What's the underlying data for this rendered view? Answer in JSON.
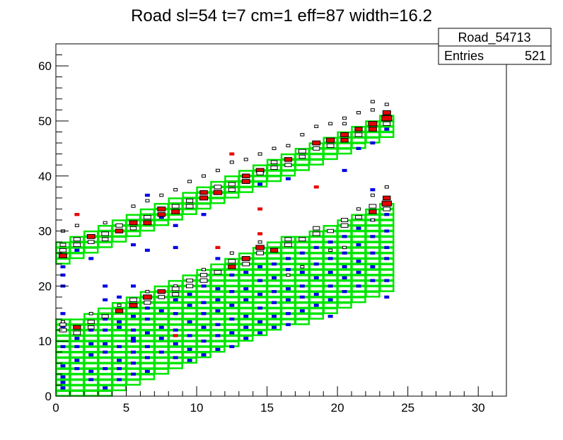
{
  "chart_data": {
    "type": "heatmap",
    "title": "Road sl=54 t=7 cm=1 eff=87 width=16.2",
    "xlabel": "",
    "ylabel": "",
    "xlim": [
      0,
      32
    ],
    "ylim": [
      0,
      64
    ],
    "x_ticks": [
      0,
      5,
      10,
      15,
      20,
      25,
      30
    ],
    "y_ticks": [
      0,
      10,
      20,
      30,
      40,
      50,
      60
    ],
    "grid": false,
    "stats_box": {
      "name": "Road_54713",
      "entries_label": "Entries",
      "entries_value": "521"
    },
    "colors": {
      "road_box": "#00e600",
      "hit_blue": "#0000e6",
      "hit_red": "#e60000",
      "hit_outline": "#000000"
    },
    "road_upper": {
      "x_start": 0,
      "x_end": 24,
      "y_low_at_0": 23.5,
      "slope": 1.01,
      "height": 4
    },
    "road_lower": {
      "x_start": 0,
      "x_end": 24,
      "y_low_at_0": -2.5,
      "slope": 0.94,
      "height": 16
    },
    "boxes_upper": [
      [
        0,
        26.0,
        0.35
      ],
      [
        0,
        25.0,
        0.5
      ],
      [
        0,
        27.0,
        0.25
      ],
      [
        1,
        27.0,
        0.4
      ],
      [
        1,
        28.0,
        0.35
      ],
      [
        2,
        28.5,
        0.5
      ],
      [
        2,
        27.5,
        0.3
      ],
      [
        3,
        29.0,
        0.4
      ],
      [
        3,
        28.0,
        0.3
      ],
      [
        4,
        30.5,
        0.35
      ],
      [
        4,
        29.5,
        0.45
      ],
      [
        5,
        31.0,
        0.5
      ],
      [
        5,
        30.0,
        0.3
      ],
      [
        6,
        32.0,
        0.4
      ],
      [
        6,
        31.0,
        0.5
      ],
      [
        7,
        33.5,
        0.5
      ],
      [
        7,
        32.5,
        0.45
      ],
      [
        8,
        34.0,
        0.4
      ],
      [
        8,
        33.0,
        0.5
      ],
      [
        9,
        35.0,
        0.35
      ],
      [
        9,
        34.0,
        0.4
      ],
      [
        10,
        36.5,
        0.45
      ],
      [
        10,
        35.5,
        0.5
      ],
      [
        11,
        37.5,
        0.4
      ],
      [
        11,
        36.5,
        0.55
      ],
      [
        12,
        38.0,
        0.35
      ],
      [
        12,
        37.0,
        0.35
      ],
      [
        13,
        39.5,
        0.45
      ],
      [
        13,
        38.5,
        0.5
      ],
      [
        14,
        40.5,
        0.5
      ],
      [
        14,
        40.0,
        0.35
      ],
      [
        15,
        41.0,
        0.35
      ],
      [
        15,
        42.0,
        0.3
      ],
      [
        16,
        42.5,
        0.45
      ],
      [
        16,
        41.5,
        0.35
      ],
      [
        17,
        44.0,
        0.4
      ],
      [
        17,
        43.0,
        0.3
      ],
      [
        18,
        45.5,
        0.5
      ],
      [
        18,
        44.5,
        0.35
      ],
      [
        19,
        46.0,
        0.55
      ],
      [
        19,
        45.0,
        0.4
      ],
      [
        20,
        47.0,
        0.5
      ],
      [
        20,
        46.0,
        0.45
      ],
      [
        21,
        48.0,
        0.45
      ],
      [
        21,
        47.0,
        0.4
      ],
      [
        22,
        49.0,
        0.6
      ],
      [
        22,
        48.0,
        0.5
      ],
      [
        23,
        50.0,
        0.75
      ],
      [
        23,
        51.0,
        0.5
      ],
      [
        23,
        49.0,
        0.4
      ]
    ],
    "boxes_lower": [
      [
        0,
        11.5,
        0.4
      ],
      [
        0,
        12.5,
        0.3
      ],
      [
        1,
        12.0,
        0.45
      ],
      [
        1,
        11.0,
        0.4
      ],
      [
        2,
        13.0,
        0.35
      ],
      [
        2,
        12.0,
        0.3
      ],
      [
        3,
        14.0,
        0.35
      ],
      [
        4,
        15.0,
        0.45
      ],
      [
        5,
        16.0,
        0.5
      ],
      [
        5,
        17.0,
        0.4
      ],
      [
        6,
        17.5,
        0.55
      ],
      [
        6,
        16.5,
        0.35
      ],
      [
        7,
        18.5,
        0.45
      ],
      [
        7,
        17.5,
        0.3
      ],
      [
        8,
        19.0,
        0.4
      ],
      [
        8,
        18.0,
        0.35
      ],
      [
        9,
        19.5,
        0.35
      ],
      [
        9,
        20.5,
        0.3
      ],
      [
        10,
        20.5,
        0.4
      ],
      [
        10,
        21.5,
        0.35
      ],
      [
        11,
        22.0,
        0.4
      ],
      [
        12,
        23.0,
        0.45
      ],
      [
        12,
        24.0,
        0.4
      ],
      [
        13,
        24.5,
        0.5
      ],
      [
        13,
        23.5,
        0.4
      ],
      [
        14,
        25.5,
        0.4
      ],
      [
        14,
        26.5,
        0.55
      ],
      [
        15,
        26.0,
        0.45
      ],
      [
        16,
        27.0,
        0.4
      ],
      [
        16,
        28.0,
        0.35
      ],
      [
        17,
        28.0,
        0.35
      ],
      [
        18,
        29.0,
        0.4
      ],
      [
        18,
        30.0,
        0.35
      ],
      [
        19,
        29.5,
        0.3
      ],
      [
        20,
        30.5,
        0.4
      ],
      [
        20,
        31.5,
        0.35
      ],
      [
        21,
        32.0,
        0.35
      ],
      [
        22,
        33.0,
        0.45
      ],
      [
        22,
        34.0,
        0.4
      ],
      [
        23,
        34.5,
        0.7
      ],
      [
        23,
        35.5,
        0.45
      ],
      [
        23,
        33.5,
        0.4
      ]
    ],
    "blue_hits": [
      [
        0,
        23.0
      ],
      [
        0,
        21.5
      ],
      [
        0,
        19.5
      ],
      [
        0,
        14.5
      ],
      [
        0,
        12.0
      ],
      [
        0,
        8.5
      ],
      [
        0,
        5.0
      ],
      [
        0,
        3.0
      ],
      [
        0,
        2.0
      ],
      [
        0,
        1.0
      ],
      [
        1,
        26.0
      ],
      [
        1,
        10.0
      ],
      [
        1,
        8.5
      ],
      [
        1,
        6.0
      ],
      [
        1,
        4.5
      ],
      [
        2,
        24.5
      ],
      [
        2,
        11.5
      ],
      [
        2,
        9.0
      ],
      [
        2,
        7.0
      ],
      [
        2,
        4.0
      ],
      [
        2,
        2.5
      ],
      [
        3,
        28.0
      ],
      [
        3,
        19.5
      ],
      [
        3,
        17.0
      ],
      [
        3,
        13.5
      ],
      [
        3,
        11.5
      ],
      [
        3,
        9.0
      ],
      [
        3,
        7.5
      ],
      [
        3,
        4.5
      ],
      [
        3,
        1.0
      ],
      [
        4,
        17.5
      ],
      [
        4,
        13.0
      ],
      [
        4,
        12.0
      ],
      [
        4,
        8.5
      ],
      [
        4,
        6.0
      ],
      [
        4,
        4.5
      ],
      [
        4,
        2.5
      ],
      [
        5,
        27.0
      ],
      [
        5,
        19.5
      ],
      [
        5,
        14.0
      ],
      [
        5,
        11.5
      ],
      [
        5,
        10.0
      ],
      [
        5,
        9.5
      ],
      [
        5,
        7.5
      ],
      [
        5,
        5.5
      ],
      [
        5,
        3.5
      ],
      [
        6,
        36.0
      ],
      [
        6,
        26.0
      ],
      [
        6,
        15.5
      ],
      [
        6,
        13.5
      ],
      [
        6,
        11.0
      ],
      [
        6,
        8.5
      ],
      [
        6,
        6.5
      ],
      [
        6,
        4.0
      ],
      [
        7,
        32.0
      ],
      [
        7,
        15.0
      ],
      [
        7,
        12.0
      ],
      [
        7,
        10.0
      ],
      [
        7,
        7.5
      ],
      [
        8,
        30.5
      ],
      [
        8,
        26.5
      ],
      [
        8,
        17.0
      ],
      [
        8,
        14.5
      ],
      [
        8,
        11.5
      ],
      [
        8,
        9.0
      ],
      [
        8,
        6.5
      ],
      [
        9,
        18.0
      ],
      [
        9,
        16.0
      ],
      [
        9,
        13.0
      ],
      [
        9,
        10.5
      ],
      [
        9,
        8.0
      ],
      [
        9,
        6.0
      ],
      [
        10,
        32.5
      ],
      [
        10,
        19.5
      ],
      [
        10,
        16.5
      ],
      [
        10,
        14.5
      ],
      [
        10,
        12.0
      ],
      [
        10,
        9.5
      ],
      [
        10,
        7.0
      ],
      [
        11,
        24.5
      ],
      [
        11,
        19.0
      ],
      [
        11,
        17.0
      ],
      [
        11,
        15.0
      ],
      [
        11,
        12.5
      ],
      [
        11,
        10.5
      ],
      [
        11,
        8.0
      ],
      [
        12,
        21.5
      ],
      [
        12,
        18.5
      ],
      [
        12,
        16.0
      ],
      [
        12,
        13.5
      ],
      [
        12,
        11.0
      ],
      [
        12,
        8.5
      ],
      [
        13,
        22.0
      ],
      [
        13,
        19.0
      ],
      [
        13,
        17.0
      ],
      [
        13,
        14.0
      ],
      [
        13,
        12.0
      ],
      [
        13,
        10.0
      ],
      [
        14,
        38.0
      ],
      [
        14,
        23.0
      ],
      [
        14,
        20.5
      ],
      [
        14,
        18.0
      ],
      [
        14,
        15.5
      ],
      [
        14,
        13.0
      ],
      [
        14,
        11.0
      ],
      [
        15,
        23.5
      ],
      [
        15,
        21.0
      ],
      [
        15,
        18.5
      ],
      [
        15,
        16.5
      ],
      [
        15,
        14.0
      ],
      [
        15,
        12.0
      ],
      [
        16,
        39.0
      ],
      [
        16,
        24.5
      ],
      [
        16,
        22.5
      ],
      [
        16,
        19.0
      ],
      [
        16,
        17.0
      ],
      [
        16,
        14.5
      ],
      [
        16,
        12.5
      ],
      [
        17,
        25.5
      ],
      [
        17,
        22.0
      ],
      [
        17,
        19.5
      ],
      [
        17,
        17.5
      ],
      [
        17,
        15.0
      ],
      [
        18,
        26.5
      ],
      [
        18,
        23.5
      ],
      [
        18,
        21.0
      ],
      [
        18,
        18.0
      ],
      [
        18,
        16.0
      ],
      [
        19,
        27.5
      ],
      [
        19,
        24.5
      ],
      [
        19,
        22.0
      ],
      [
        19,
        19.5
      ],
      [
        19,
        17.0
      ],
      [
        19,
        14.0
      ],
      [
        20,
        40.5
      ],
      [
        20,
        28.5
      ],
      [
        20,
        25.5
      ],
      [
        20,
        23.0
      ],
      [
        20,
        21.0
      ],
      [
        20,
        18.5
      ],
      [
        21,
        44.5
      ],
      [
        21,
        30.0
      ],
      [
        21,
        27.0
      ],
      [
        21,
        24.0
      ],
      [
        21,
        22.0
      ],
      [
        21,
        19.5
      ],
      [
        22,
        45.5
      ],
      [
        22,
        37.0
      ],
      [
        22,
        31.5
      ],
      [
        22,
        28.5
      ],
      [
        22,
        25.5
      ],
      [
        22,
        23.0
      ],
      [
        22,
        20.5
      ],
      [
        23,
        48.0
      ],
      [
        23,
        32.5
      ],
      [
        23,
        29.5
      ],
      [
        23,
        26.5
      ],
      [
        23,
        24.5
      ],
      [
        23,
        20.5
      ],
      [
        23,
        17.5
      ]
    ],
    "red_hits": [
      [
        1,
        32.5
      ],
      [
        8,
        10.5
      ],
      [
        11,
        26.5
      ],
      [
        12,
        43.5
      ],
      [
        14,
        33.5
      ],
      [
        14,
        29.0
      ],
      [
        18,
        37.5
      ]
    ],
    "small_white": [
      [
        0,
        29.5
      ],
      [
        1,
        30.5
      ],
      [
        3,
        31.0
      ],
      [
        5,
        34.0
      ],
      [
        6,
        35.0
      ],
      [
        7,
        36.0
      ],
      [
        8,
        37.0
      ],
      [
        9,
        38.5
      ],
      [
        10,
        39.5
      ],
      [
        11,
        40.5
      ],
      [
        12,
        42.0
      ],
      [
        13,
        42.5
      ],
      [
        14,
        43.5
      ],
      [
        15,
        44.5
      ],
      [
        16,
        45.0
      ],
      [
        17,
        47.0
      ],
      [
        18,
        48.5
      ],
      [
        19,
        49.0
      ],
      [
        20,
        50.0
      ],
      [
        21,
        51.0
      ],
      [
        22,
        53.0
      ],
      [
        23,
        52.5
      ],
      [
        22,
        51.5
      ],
      [
        20,
        49.0
      ],
      [
        16,
        21.5
      ],
      [
        17,
        23.0
      ],
      [
        19,
        26.0
      ],
      [
        20,
        26.5
      ],
      [
        22,
        31.5
      ],
      [
        23,
        37.5
      ],
      [
        22,
        36.0
      ],
      [
        21,
        33.5
      ],
      [
        0,
        13.0
      ],
      [
        2,
        14.5
      ],
      [
        4,
        16.0
      ],
      [
        6,
        18.5
      ],
      [
        8,
        19.5
      ],
      [
        10,
        22.5
      ],
      [
        12,
        25.5
      ],
      [
        14,
        27.5
      ]
    ]
  }
}
